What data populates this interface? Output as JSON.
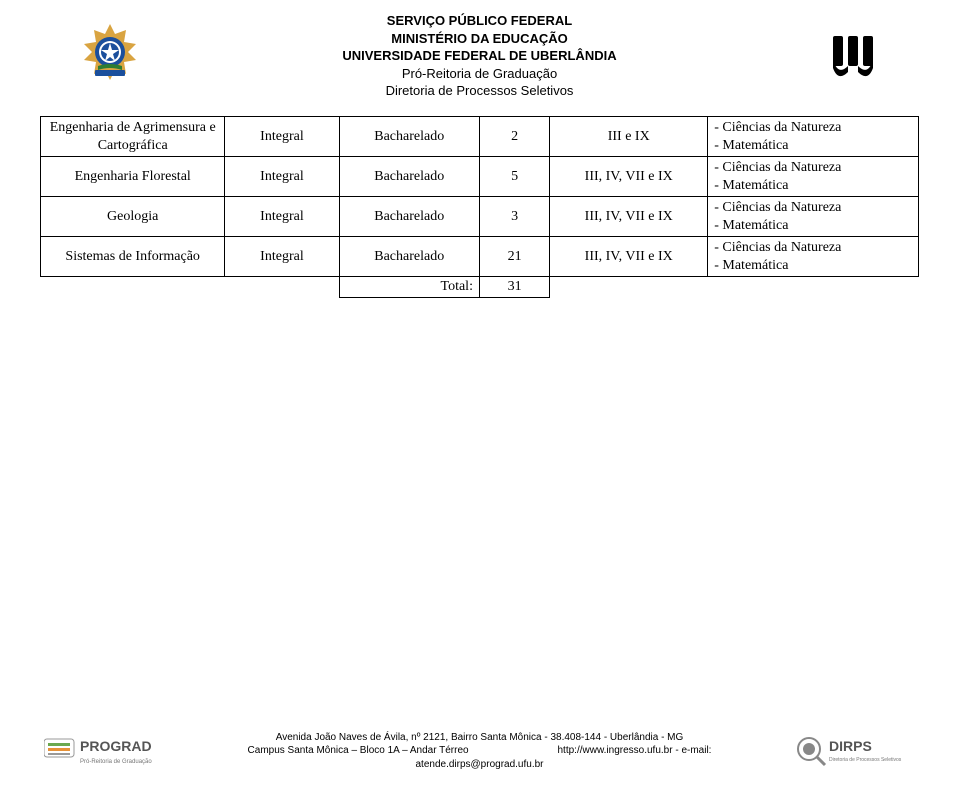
{
  "header": {
    "line1": "SERVIÇO PÚBLICO FEDERAL",
    "line2": "MINISTÉRIO DA EDUCAÇÃO",
    "line3": "UNIVERSIDADE FEDERAL DE UBERLÂNDIA",
    "line4": "Pró-Reitoria de Graduação",
    "line5": "Diretoria de Processos Seletivos"
  },
  "table": {
    "rows": [
      {
        "course": "Engenharia de Agrimensura e Cartográfica",
        "shift": "Integral",
        "degree": "Bacharelado",
        "vac": "2",
        "phases": "III e IX",
        "notes": "- Ciências da Natureza\n- Matemática"
      },
      {
        "course": "Engenharia Florestal",
        "shift": "Integral",
        "degree": "Bacharelado",
        "vac": "5",
        "phases": "III, IV, VII e IX",
        "notes": "- Ciências da Natureza\n- Matemática"
      },
      {
        "course": "Geologia",
        "shift": "Integral",
        "degree": "Bacharelado",
        "vac": "3",
        "phases": "III, IV, VII e IX",
        "notes": "- Ciências da Natureza\n- Matemática"
      },
      {
        "course": "Sistemas de Informação",
        "shift": "Integral",
        "degree": "Bacharelado",
        "vac": "21",
        "phases": "III, IV, VII e IX",
        "notes": "- Ciências da Natureza\n- Matemática"
      }
    ],
    "total_label": "Total:",
    "total_value": "31"
  },
  "footer": {
    "line1": "Avenida João Naves de Ávila, nº 2121, Bairro Santa Mônica - 38.408-144 - Uberlândia - MG",
    "line2_left": "Campus Santa Mônica – Bloco 1A – Andar Térreo",
    "line2_right": "http://www.ingresso.ufu.br - e-mail:",
    "line3": "atende.dirps@prograd.ufu.br"
  },
  "colors": {
    "text": "#000000",
    "bg": "#ffffff",
    "border": "#000000",
    "brasao_blue": "#1b4f9c",
    "brasao_gold": "#d9a441",
    "brasao_green": "#2e7d32",
    "ufu_black": "#000000",
    "prograd_green": "#6aa84f",
    "prograd_orange": "#e69138"
  },
  "logos": {
    "prograd_text": "PROGRAD",
    "prograd_sub": "Pró-Reitoria de Graduação",
    "dirps_text": "DIRPS",
    "dirps_sub": "Diretoria de Processos Seletivos"
  }
}
